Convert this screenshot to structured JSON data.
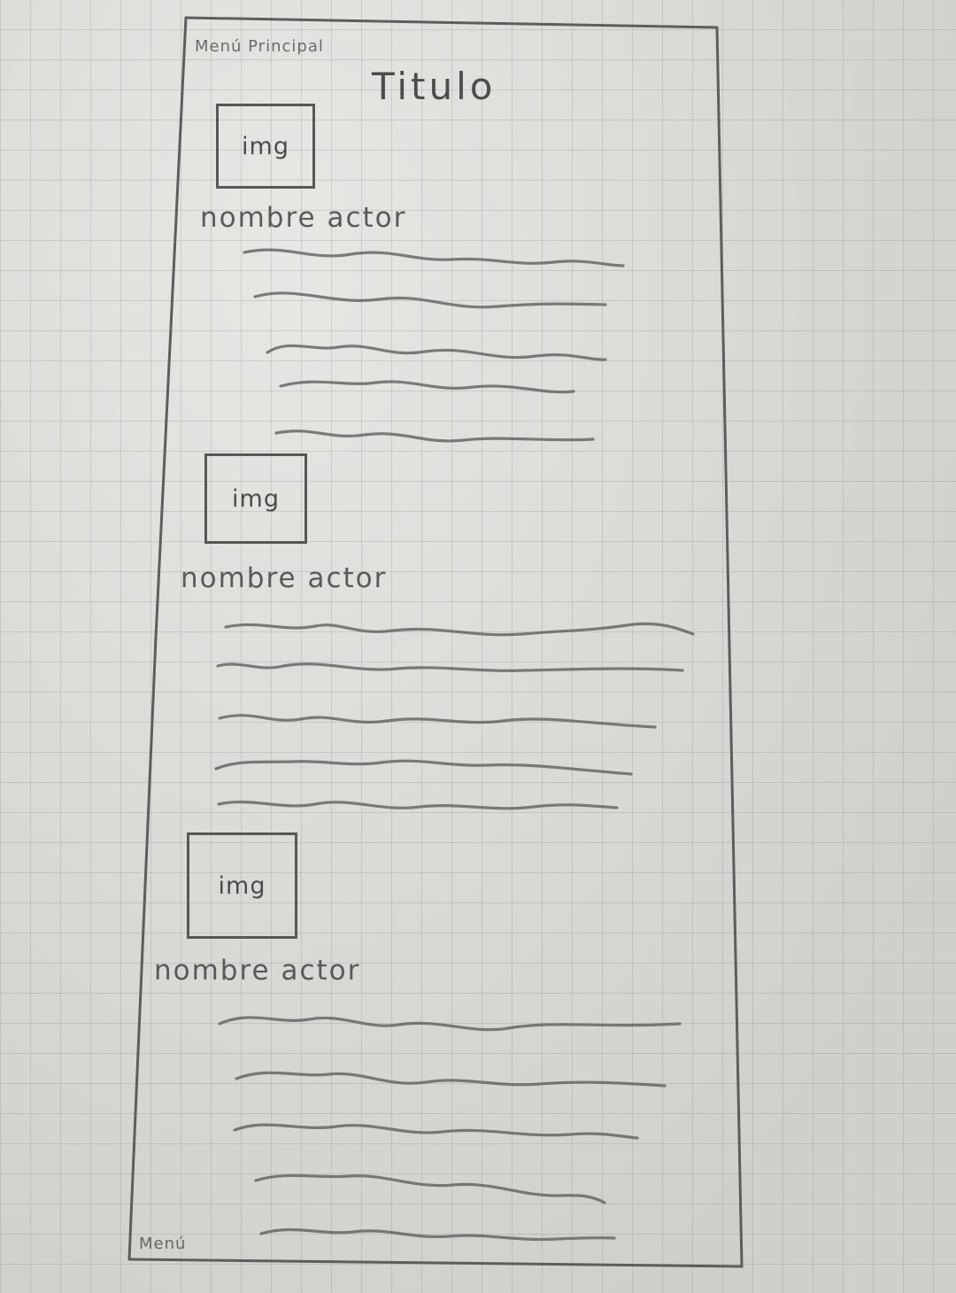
{
  "sketch": {
    "main_menu_label": "Menú Principal",
    "title": "Titulo",
    "bottom_menu_label": "Menú",
    "entries": [
      {
        "image_label": "img",
        "name_label": "nombre actor"
      },
      {
        "image_label": "img",
        "name_label": "nombre actor"
      },
      {
        "image_label": "img",
        "name_label": "nombre actor"
      }
    ]
  },
  "colors": {
    "paper": "#dcdad6",
    "pencil": "#5d5d5d",
    "grid": "#8c8c8c"
  }
}
